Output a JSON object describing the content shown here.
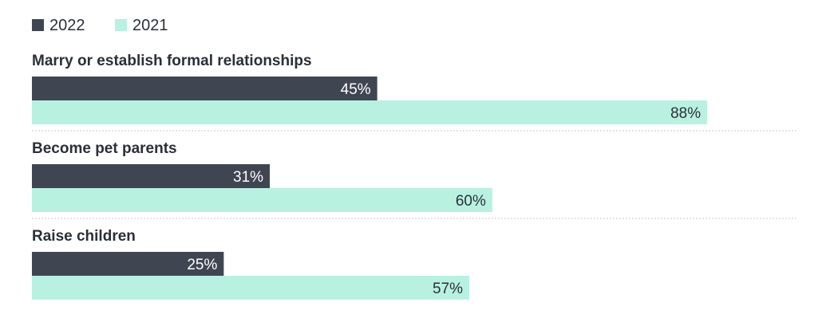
{
  "chart_data": {
    "type": "bar",
    "orientation": "horizontal",
    "categories": [
      "Marry or establish formal relationships",
      "Become pet parents",
      "Raise children"
    ],
    "series": [
      {
        "name": "2022",
        "values": [
          45,
          31,
          25
        ],
        "labels": [
          "45%",
          "31%",
          "25%"
        ],
        "color": "#404552"
      },
      {
        "name": "2021",
        "values": [
          88,
          60,
          57
        ],
        "labels": [
          "88%",
          "60%",
          "57%"
        ],
        "color": "#b9f1e1"
      }
    ],
    "legend_position": "top-left",
    "xlim": [
      0,
      100
    ],
    "grid": false
  }
}
